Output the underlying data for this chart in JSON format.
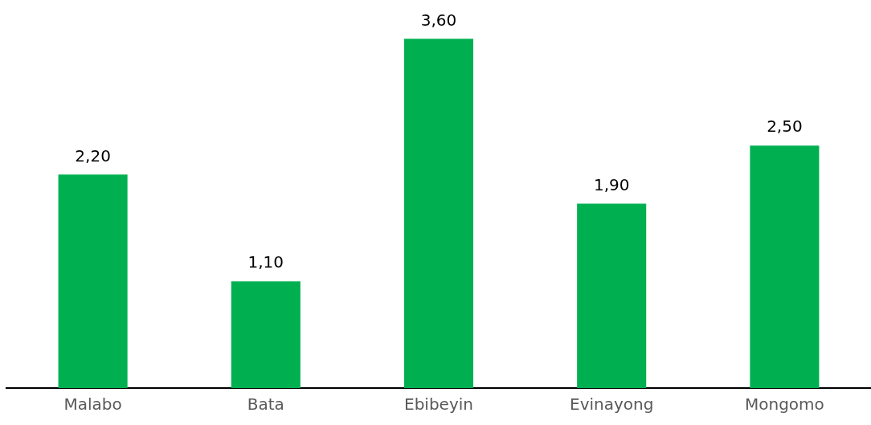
{
  "chart_data": {
    "type": "bar",
    "categories": [
      "Malabo",
      "Bata",
      "Ebibeyin",
      "Evinayong",
      "Mongomo"
    ],
    "values": [
      2.2,
      1.1,
      3.6,
      1.9,
      2.5
    ],
    "value_labels": [
      "2,20",
      "1,10",
      "3,60",
      "1,90",
      "2,50"
    ],
    "color": "#00b050",
    "tick_labels": "x",
    "grid": false,
    "legend": false
  }
}
